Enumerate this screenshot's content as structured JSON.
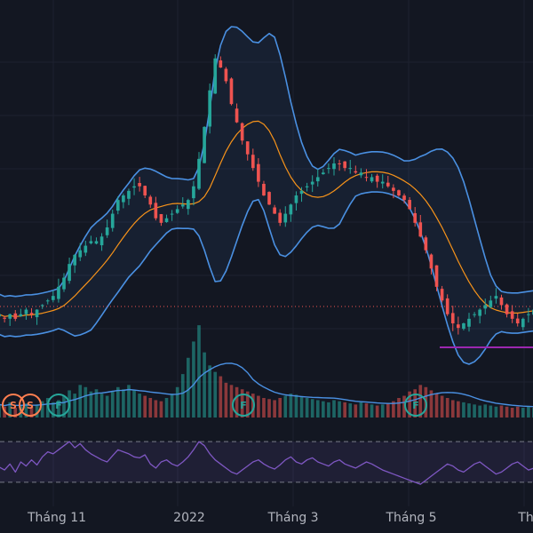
{
  "chart_data": {
    "type": "candlestick",
    "x_axis": {
      "tick_labels": [
        "Tháng 11",
        "2022",
        "Tháng 3",
        "Tháng 5",
        "Th"
      ]
    },
    "price_panel": {
      "approx_close_series": [
        44,
        43,
        44,
        43,
        44,
        45,
        44,
        45,
        46,
        47,
        48,
        50,
        52,
        55,
        57,
        58,
        59,
        60,
        60,
        61,
        63,
        66,
        69,
        70,
        71,
        72,
        72,
        70,
        68,
        65,
        64,
        65,
        66,
        67,
        68,
        69,
        72,
        78,
        85,
        93,
        100,
        98,
        95,
        90,
        86,
        82,
        79,
        76,
        73,
        70,
        68,
        66,
        64,
        66,
        68,
        70,
        71,
        72,
        73,
        74,
        75,
        76,
        77,
        77,
        76,
        76,
        75,
        75,
        74,
        74,
        73,
        73,
        72,
        71,
        70,
        69,
        67,
        64,
        61,
        58,
        54,
        50,
        47,
        44,
        42,
        41,
        42,
        43,
        44,
        45,
        46,
        47,
        48,
        46,
        44,
        43,
        42,
        43,
        44,
        45
      ],
      "bollinger_middle_color": "#f7931a",
      "bollinger_band_color": "#4a90e2",
      "up_color": "#26a69a",
      "down_color": "#ef5350",
      "reference_line_color": "#ef5350",
      "support_line_color": "#9c27b0"
    },
    "volume_panel": {
      "approx_volume_series": [
        12,
        10,
        14,
        9,
        11,
        13,
        10,
        12,
        15,
        18,
        14,
        16,
        20,
        25,
        22,
        30,
        28,
        24,
        26,
        22,
        20,
        24,
        28,
        26,
        30,
        25,
        22,
        20,
        18,
        16,
        15,
        18,
        22,
        28,
        40,
        55,
        70,
        85,
        60,
        48,
        42,
        38,
        32,
        30,
        28,
        26,
        24,
        22,
        20,
        18,
        17,
        16,
        18,
        20,
        22,
        21,
        19,
        18,
        17,
        16,
        15,
        14,
        16,
        15,
        14,
        13,
        12,
        14,
        13,
        12,
        11,
        12,
        13,
        15,
        18,
        20,
        24,
        26,
        30,
        28,
        25,
        22,
        20,
        18,
        16,
        15,
        14,
        13,
        12,
        11,
        12,
        11,
        10,
        11,
        10,
        9,
        10,
        9,
        10,
        9
      ],
      "average_line_color": "#4a90e2"
    },
    "rsi_panel": {
      "approx_rsi_series": [
        45,
        42,
        48,
        40,
        50,
        46,
        52,
        47,
        55,
        60,
        58,
        62,
        66,
        70,
        64,
        68,
        62,
        58,
        55,
        52,
        50,
        56,
        62,
        60,
        58,
        55,
        54,
        57,
        48,
        44,
        50,
        52,
        48,
        46,
        50,
        55,
        62,
        70,
        66,
        58,
        52,
        48,
        44,
        40,
        38,
        42,
        46,
        50,
        52,
        48,
        45,
        43,
        47,
        52,
        55,
        50,
        48,
        52,
        54,
        50,
        48,
        46,
        50,
        52,
        48,
        46,
        44,
        47,
        50,
        48,
        45,
        42,
        40,
        38,
        36,
        34,
        32,
        30,
        28,
        32,
        36,
        40,
        44,
        48,
        46,
        42,
        40,
        44,
        48,
        50,
        46,
        42,
        38,
        40,
        44,
        48,
        50,
        46,
        42,
        44
      ],
      "upper_level": 70,
      "lower_level": 30,
      "line_color": "#7e57c2"
    },
    "event_markers": [
      {
        "text": "S",
        "color": "#ff7f50"
      },
      {
        "text": "S",
        "color": "#ff7f50"
      },
      {
        "text": "F",
        "color": "#26a69a"
      },
      {
        "text": "F",
        "color": "#26a69a"
      },
      {
        "text": "F",
        "color": "#26a69a"
      }
    ]
  }
}
